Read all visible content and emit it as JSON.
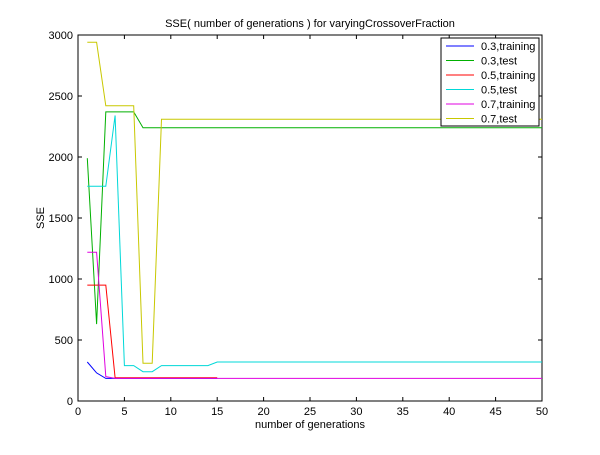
{
  "chart_data": {
    "type": "line",
    "title": "SSE( number of generations ) for varyingCrossoverFraction",
    "xlabel": "number of generations",
    "ylabel": "SSE",
    "xlim": [
      0,
      50
    ],
    "ylim": [
      0,
      3000
    ],
    "xticks": [
      0,
      5,
      10,
      15,
      20,
      25,
      30,
      35,
      40,
      45,
      50
    ],
    "yticks": [
      0,
      500,
      1000,
      1500,
      2000,
      2500,
      3000
    ],
    "grid": false,
    "legend_position": "top-right",
    "series": [
      {
        "name": "0.3,training",
        "color": "#0000ff",
        "points": [
          [
            1,
            320
          ],
          [
            2,
            230
          ],
          [
            3,
            185
          ],
          [
            4,
            185
          ],
          [
            5,
            185
          ],
          [
            6,
            185
          ],
          [
            7,
            185
          ],
          [
            8,
            185
          ],
          [
            9,
            185
          ],
          [
            10,
            185
          ],
          [
            11,
            185
          ],
          [
            12,
            185
          ],
          [
            13,
            185
          ],
          [
            14,
            185
          ],
          [
            15,
            185
          ]
        ]
      },
      {
        "name": "0.3,test",
        "color": "#00b000",
        "points": [
          [
            1,
            1990
          ],
          [
            2,
            630
          ],
          [
            3,
            2370
          ],
          [
            4,
            2370
          ],
          [
            5,
            2370
          ],
          [
            6,
            2370
          ],
          [
            7,
            2240
          ],
          [
            8,
            2240
          ],
          [
            9,
            2240
          ],
          [
            10,
            2240
          ],
          [
            15,
            2240
          ],
          [
            20,
            2240
          ],
          [
            30,
            2240
          ],
          [
            40,
            2240
          ],
          [
            50,
            2240
          ]
        ]
      },
      {
        "name": "0.5,training",
        "color": "#ff0000",
        "points": [
          [
            1,
            950
          ],
          [
            2,
            950
          ],
          [
            3,
            950
          ],
          [
            4,
            190
          ],
          [
            5,
            190
          ],
          [
            6,
            190
          ],
          [
            7,
            190
          ],
          [
            8,
            190
          ],
          [
            9,
            190
          ],
          [
            10,
            190
          ],
          [
            11,
            190
          ],
          [
            12,
            190
          ],
          [
            13,
            190
          ],
          [
            14,
            190
          ],
          [
            15,
            190
          ]
        ]
      },
      {
        "name": "0.5,test",
        "color": "#00d8d8",
        "points": [
          [
            1,
            1760
          ],
          [
            2,
            1760
          ],
          [
            3,
            1760
          ],
          [
            4,
            2340
          ],
          [
            5,
            290
          ],
          [
            6,
            290
          ],
          [
            7,
            240
          ],
          [
            8,
            240
          ],
          [
            9,
            290
          ],
          [
            10,
            290
          ],
          [
            14,
            290
          ],
          [
            15,
            320
          ],
          [
            20,
            320
          ],
          [
            30,
            320
          ],
          [
            40,
            320
          ],
          [
            50,
            320
          ]
        ]
      },
      {
        "name": "0.7,training",
        "color": "#e000e0",
        "points": [
          [
            1,
            1220
          ],
          [
            2,
            1220
          ],
          [
            3,
            200
          ],
          [
            4,
            185
          ],
          [
            5,
            185
          ],
          [
            6,
            185
          ],
          [
            7,
            185
          ],
          [
            8,
            185
          ],
          [
            9,
            185
          ],
          [
            10,
            185
          ],
          [
            15,
            185
          ],
          [
            20,
            185
          ],
          [
            30,
            185
          ],
          [
            40,
            185
          ],
          [
            50,
            185
          ]
        ]
      },
      {
        "name": "0.7,test",
        "color": "#c8c800",
        "points": [
          [
            1,
            2940
          ],
          [
            2,
            2940
          ],
          [
            3,
            2420
          ],
          [
            4,
            2420
          ],
          [
            5,
            2420
          ],
          [
            6,
            2420
          ],
          [
            7,
            310
          ],
          [
            8,
            310
          ],
          [
            9,
            2310
          ],
          [
            10,
            2310
          ],
          [
            15,
            2310
          ],
          [
            20,
            2310
          ],
          [
            30,
            2310
          ],
          [
            40,
            2310
          ],
          [
            50,
            2310
          ]
        ]
      }
    ]
  }
}
